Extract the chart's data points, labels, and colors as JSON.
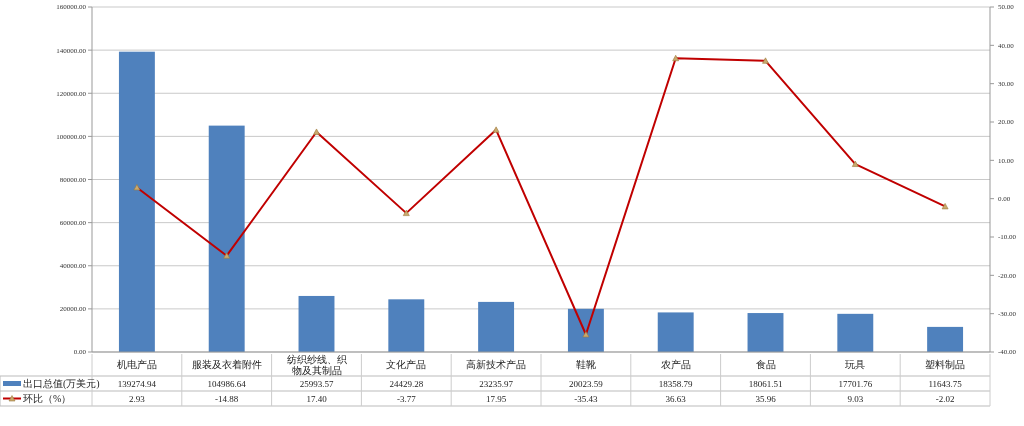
{
  "chart_data": {
    "type": "bar",
    "categories": [
      "机电产品",
      "服装及衣着附件",
      "纺织纱线、织物及其制品",
      "文化产品",
      "高新技术产品",
      "鞋靴",
      "农产品",
      "食品",
      "玩具",
      "塑料制品"
    ],
    "series": [
      {
        "name": "出口总值(万美元)",
        "color": "#4f81bd",
        "values": [
          139274.94,
          104986.64,
          25993.57,
          24429.28,
          23235.97,
          20023.59,
          18358.79,
          18061.51,
          17701.76,
          11643.75
        ],
        "value_labels": [
          "139274.94",
          "104986.64",
          "25993.57",
          "24429.28",
          "23235.97",
          "20023.59",
          "18358.79",
          "18061.51",
          "17701.76",
          "11643.75"
        ]
      },
      {
        "name": "环比（%）",
        "type": "line",
        "axis": "y2",
        "color": "#c00000",
        "marker": "triangle",
        "values": [
          2.93,
          -14.88,
          17.4,
          -3.77,
          17.95,
          -35.43,
          36.63,
          35.96,
          9.03,
          -2.02
        ],
        "value_labels": [
          "2.93",
          "-14.88",
          "17.40",
          "-3.77",
          "17.95",
          "-35.43",
          "36.63",
          "35.96",
          "9.03",
          "-2.02"
        ]
      }
    ],
    "ylim": [
      0,
      160000
    ],
    "yticks": [
      {
        "value": 0,
        "label": "0.00"
      },
      {
        "value": 20000,
        "label": "20000.00"
      },
      {
        "value": 40000,
        "label": "40000.00"
      },
      {
        "value": 60000,
        "label": "60000.00"
      },
      {
        "value": 80000,
        "label": "80000.00"
      },
      {
        "value": 100000,
        "label": "100000.00"
      },
      {
        "value": 120000,
        "label": "120000.00"
      },
      {
        "value": 140000,
        "label": "140000.00"
      },
      {
        "value": 160000,
        "label": "160000.00"
      }
    ],
    "y2lim": [
      -40,
      50
    ],
    "y2ticks": [
      {
        "value": -40,
        "label": "-40.00"
      },
      {
        "value": -30,
        "label": "-30.00"
      },
      {
        "value": -20,
        "label": "-20.00"
      },
      {
        "value": -10,
        "label": "-10.00"
      },
      {
        "value": 0,
        "label": "0.00"
      },
      {
        "value": 10,
        "label": "10.00"
      },
      {
        "value": 20,
        "label": "20.00"
      },
      {
        "value": 30,
        "label": "30.00"
      },
      {
        "value": 40,
        "label": "40.00"
      },
      {
        "value": 50,
        "label": "50.00"
      }
    ],
    "grid": "y",
    "legend": "bottom"
  }
}
